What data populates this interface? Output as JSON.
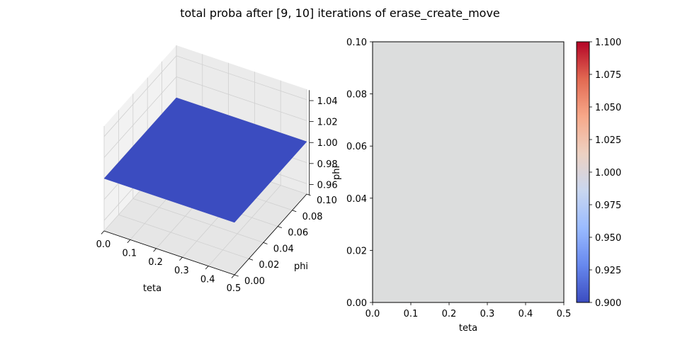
{
  "figure_title": "total proba after [9, 10] iterations of erase_create_move",
  "colors": {
    "surface": "#3b4cc0",
    "heatmap_fill": "#dcdddd",
    "pane_left": "#f2f2f2",
    "pane_right": "#ebebeb",
    "pane_floor": "#e6e6e6",
    "grid": "#d0d0d0",
    "colormap": [
      "#3b4cc0",
      "#6788ee",
      "#9abbff",
      "#c9d7f0",
      "#edd1c2",
      "#f7a889",
      "#e26952",
      "#b40426"
    ]
  },
  "chart_data": [
    {
      "type": "surface3d",
      "xlabel": "teta",
      "ylabel": "phi",
      "zlabel": "phi",
      "x_ticks": [
        "0.0",
        "0.1",
        "0.2",
        "0.3",
        "0.4",
        "0.5"
      ],
      "y_ticks": [
        "0.00",
        "0.02",
        "0.04",
        "0.06",
        "0.08",
        "0.10"
      ],
      "z_ticks": [
        "0.96",
        "0.98",
        "1.00",
        "1.02",
        "1.04"
      ],
      "xlim": [
        0,
        0.5
      ],
      "ylim": [
        0,
        0.1
      ],
      "zlim": [
        0.95,
        1.05
      ],
      "x": [
        0,
        0.5
      ],
      "y": [
        0,
        0.1
      ],
      "z_value": 1.0,
      "colormap": "coolwarm"
    },
    {
      "type": "heatmap",
      "xlabel": "teta",
      "ylabel": "",
      "x_ticks": [
        "0.0",
        "0.1",
        "0.2",
        "0.3",
        "0.4",
        "0.5"
      ],
      "y_ticks": [
        "0.00",
        "0.02",
        "0.04",
        "0.06",
        "0.08",
        "0.10"
      ],
      "xlim": [
        0,
        0.5
      ],
      "ylim": [
        0,
        0.1
      ],
      "value": 1.0,
      "colorbar": {
        "ticks": [
          "0.900",
          "0.925",
          "0.950",
          "0.975",
          "1.000",
          "1.025",
          "1.050",
          "1.075",
          "1.100"
        ],
        "range": [
          0.9,
          1.1
        ]
      }
    }
  ]
}
